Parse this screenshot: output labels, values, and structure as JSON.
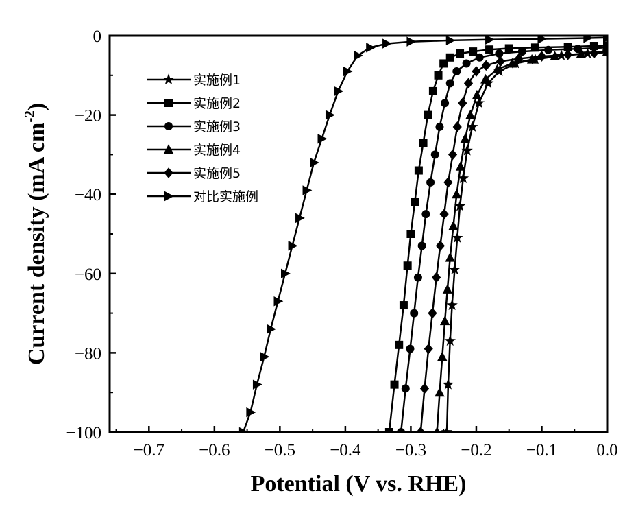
{
  "chart_data": {
    "type": "line",
    "xlabel": "Potential (V vs. RHE)",
    "ylabel": "Current density (mA cm",
    "ylabel_sup": "-2",
    "ylabel_close": ")",
    "xlim": [
      -0.76,
      0.0
    ],
    "ylim": [
      -100,
      0
    ],
    "x_ticks": [
      -0.7,
      -0.6,
      -0.5,
      -0.4,
      -0.3,
      -0.2,
      -0.1,
      0.0
    ],
    "x_tick_labels": [
      "−0.7",
      "−0.6",
      "−0.5",
      "−0.4",
      "−0.3",
      "−0.2",
      "−0.1",
      "0.0"
    ],
    "y_ticks": [
      0,
      -20,
      -40,
      -60,
      -80,
      -100
    ],
    "y_tick_labels": [
      "0",
      "−20",
      "−40",
      "−60",
      "−80",
      "−100"
    ],
    "grid": false,
    "legend_position": "top-left",
    "series": [
      {
        "name": "实施例1",
        "marker": "star",
        "x": [
          -0.245,
          -0.243,
          -0.24,
          -0.237,
          -0.233,
          -0.229,
          -0.225,
          -0.22,
          -0.214,
          -0.206,
          -0.196,
          -0.182,
          -0.165,
          -0.14,
          -0.11,
          -0.07,
          -0.03,
          0.0
        ],
        "y": [
          -100,
          -88,
          -77,
          -68,
          -59,
          -51,
          -43,
          -36,
          -29,
          -23,
          -17,
          -12,
          -9,
          -7,
          -6,
          -5,
          -4.5,
          -4
        ]
      },
      {
        "name": "实施例2",
        "marker": "square",
        "x": [
          -0.333,
          -0.325,
          -0.318,
          -0.311,
          -0.305,
          -0.3,
          -0.294,
          -0.288,
          -0.281,
          -0.274,
          -0.266,
          -0.258,
          -0.25,
          -0.24,
          -0.225,
          -0.205,
          -0.18,
          -0.15,
          -0.11,
          -0.06,
          -0.02,
          0.0
        ],
        "y": [
          -100,
          -88,
          -78,
          -68,
          -58,
          -50,
          -42,
          -34,
          -27,
          -20,
          -14,
          -10,
          -7,
          -5.5,
          -4.5,
          -4,
          -3.5,
          -3.2,
          -3,
          -2.8,
          -2.6,
          -2.5
        ]
      },
      {
        "name": "实施例3",
        "marker": "circle",
        "x": [
          -0.315,
          -0.308,
          -0.301,
          -0.295,
          -0.289,
          -0.283,
          -0.277,
          -0.27,
          -0.263,
          -0.256,
          -0.248,
          -0.24,
          -0.23,
          -0.215,
          -0.195,
          -0.165,
          -0.13,
          -0.09,
          -0.045,
          0.0
        ],
        "y": [
          -100,
          -89,
          -79,
          -70,
          -61,
          -53,
          -45,
          -37,
          -30,
          -23,
          -17,
          -12,
          -9,
          -7,
          -5.5,
          -4.5,
          -4,
          -3.6,
          -3.3,
          -3
        ]
      },
      {
        "name": "实施例4",
        "marker": "triangle-up",
        "x": [
          -0.26,
          -0.256,
          -0.252,
          -0.248,
          -0.244,
          -0.24,
          -0.235,
          -0.23,
          -0.224,
          -0.217,
          -0.209,
          -0.199,
          -0.186,
          -0.168,
          -0.145,
          -0.115,
          -0.08,
          -0.04,
          0.0
        ],
        "y": [
          -100,
          -90,
          -81,
          -72,
          -64,
          -56,
          -48,
          -40,
          -33,
          -26,
          -20,
          -15,
          -11,
          -8.5,
          -7,
          -6,
          -5.2,
          -4.6,
          -4
        ]
      },
      {
        "name": "实施例5",
        "marker": "diamond",
        "x": [
          -0.285,
          -0.279,
          -0.273,
          -0.267,
          -0.261,
          -0.255,
          -0.249,
          -0.243,
          -0.236,
          -0.229,
          -0.221,
          -0.212,
          -0.2,
          -0.185,
          -0.163,
          -0.135,
          -0.1,
          -0.06,
          -0.02,
          0.0
        ],
        "y": [
          -100,
          -89,
          -79,
          -70,
          -61,
          -53,
          -45,
          -37,
          -30,
          -23,
          -17,
          -12,
          -9,
          -7.5,
          -6.5,
          -5.8,
          -5.2,
          -4.8,
          -4.4,
          -4.2
        ]
      },
      {
        "name": "对比实施例",
        "marker": "triangle-right",
        "x": [
          -0.556,
          -0.545,
          -0.535,
          -0.524,
          -0.514,
          -0.503,
          -0.492,
          -0.481,
          -0.47,
          -0.459,
          -0.448,
          -0.436,
          -0.424,
          -0.411,
          -0.397,
          -0.381,
          -0.362,
          -0.337,
          -0.3,
          -0.24,
          -0.18,
          -0.1,
          -0.03,
          0.0
        ],
        "y": [
          -100,
          -95,
          -88,
          -81,
          -74,
          -67,
          -60,
          -53,
          -46,
          -39,
          -32,
          -26,
          -20,
          -14,
          -9,
          -5,
          -3,
          -2,
          -1.5,
          -1.2,
          -1,
          -0.8,
          -0.6,
          -0.5
        ]
      }
    ]
  }
}
